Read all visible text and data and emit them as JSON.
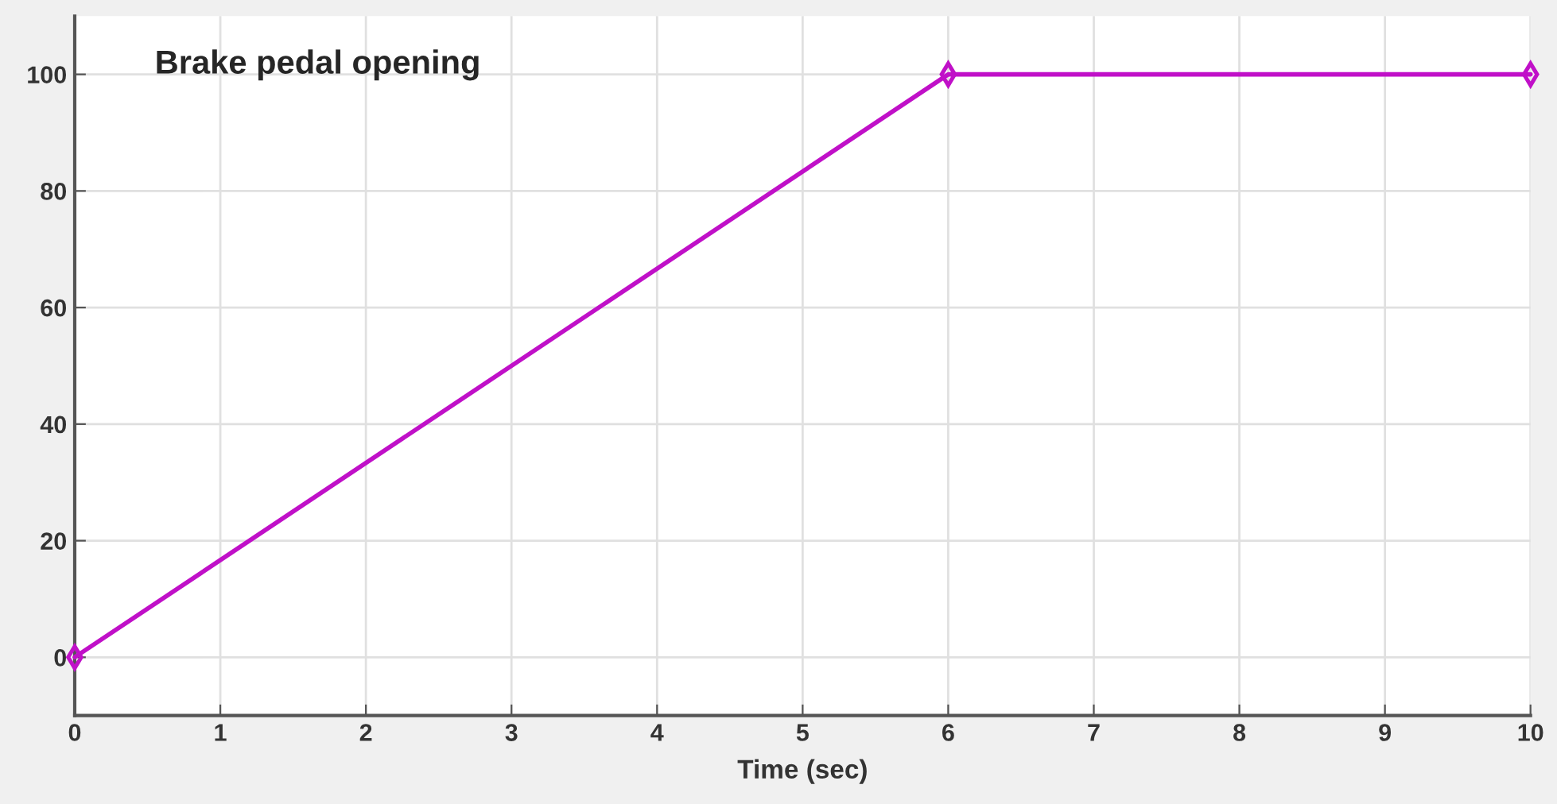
{
  "chart_data": {
    "type": "line",
    "title": "Brake pedal opening",
    "xlabel": "Time (sec)",
    "x": [
      0,
      6,
      10
    ],
    "series": [
      {
        "color": "#c010c8",
        "values": [
          0,
          100,
          100
        ]
      }
    ],
    "xlim": [
      0,
      10
    ],
    "xticks": [
      0,
      1,
      2,
      3,
      4,
      5,
      6,
      7,
      8,
      9,
      10
    ],
    "ylim": [
      -10,
      110
    ],
    "yticks": [
      0,
      20,
      40,
      60,
      80,
      100
    ],
    "grid": true,
    "marker": "diamond",
    "line_style": "solid"
  }
}
